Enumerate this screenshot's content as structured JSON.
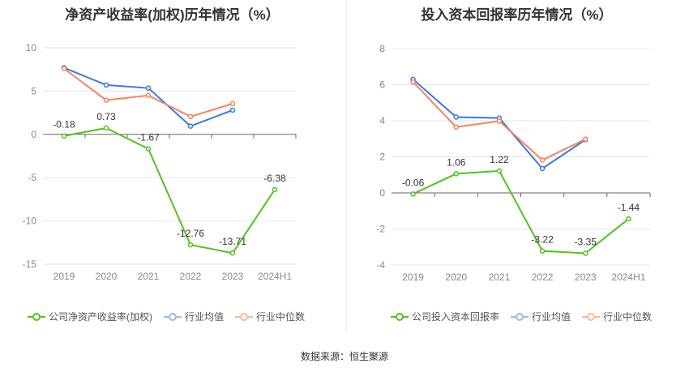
{
  "colors": {
    "company": "#52c41a",
    "avg": "#3a78e6",
    "median": "#f5845a"
  },
  "chart_data": [
    {
      "type": "line",
      "title": "净资产收益率(加权)历年情况（%）",
      "categories": [
        "2019",
        "2020",
        "2021",
        "2022",
        "2023",
        "2024H1"
      ],
      "ylim": [
        -15,
        10
      ],
      "yticks": [
        10,
        5,
        0,
        -5,
        -10,
        -15
      ],
      "series": [
        {
          "name": "公司净资产收益率(加权)",
          "values": [
            -0.18,
            0.73,
            -1.67,
            -12.76,
            -13.71,
            -6.38
          ],
          "labels": [
            "-0.18",
            "0.73",
            "-1.67",
            "-12.76",
            "-13.71",
            "-6.38"
          ]
        },
        {
          "name": "行业均值",
          "values": [
            7.7,
            5.7,
            5.35,
            0.95,
            2.8,
            null
          ]
        },
        {
          "name": "行业中位数",
          "values": [
            7.6,
            3.95,
            4.5,
            2.05,
            3.55,
            null
          ]
        }
      ]
    },
    {
      "type": "line",
      "title": "投入资本回报率历年情况（%）",
      "categories": [
        "2019",
        "2020",
        "2021",
        "2022",
        "2023",
        "2024H1"
      ],
      "ylim": [
        -4,
        8
      ],
      "yticks": [
        8,
        6,
        4,
        2,
        0,
        -2,
        -4
      ],
      "series": [
        {
          "name": "公司投入资本回报率",
          "values": [
            -0.06,
            1.06,
            1.22,
            -3.22,
            -3.35,
            -1.44
          ],
          "labels": [
            "-0.06",
            "1.06",
            "1.22",
            "-3.22",
            "-3.35",
            "-1.44"
          ]
        },
        {
          "name": "行业均值",
          "values": [
            6.3,
            4.2,
            4.15,
            1.35,
            2.95,
            null
          ]
        },
        {
          "name": "行业中位数",
          "values": [
            6.15,
            3.65,
            3.98,
            1.82,
            2.98,
            null
          ]
        }
      ]
    }
  ],
  "source": "数据来源：恒生聚源"
}
